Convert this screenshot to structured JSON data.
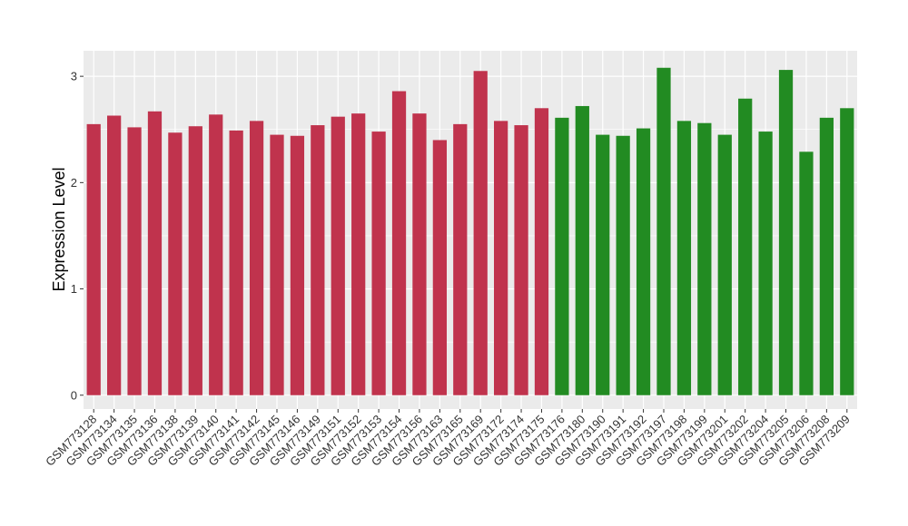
{
  "chart_data": {
    "type": "bar",
    "title": "",
    "xlabel": "",
    "ylabel": "Expression Level",
    "ylim": [
      -0.13,
      3.24
    ],
    "yticks": [
      0,
      1,
      2,
      3
    ],
    "grid": true,
    "legend": "none",
    "colors": {
      "group1": "#C0334D",
      "group2": "#228B22",
      "panel": "#EBEBEB",
      "grid": "#FFFFFF"
    },
    "categories": [
      "GSM773128",
      "GSM773134",
      "GSM773135",
      "GSM773136",
      "GSM773138",
      "GSM773139",
      "GSM773140",
      "GSM773141",
      "GSM773142",
      "GSM773145",
      "GSM773146",
      "GSM773149",
      "GSM773151",
      "GSM773152",
      "GSM773153",
      "GSM773154",
      "GSM773156",
      "GSM773163",
      "GSM773165",
      "GSM773169",
      "GSM773172",
      "GSM773174",
      "GSM773175",
      "GSM773176",
      "GSM773180",
      "GSM773190",
      "GSM773191",
      "GSM773192",
      "GSM773197",
      "GSM773198",
      "GSM773199",
      "GSM773201",
      "GSM773202",
      "GSM773204",
      "GSM773205",
      "GSM773206",
      "GSM773208",
      "GSM773209"
    ],
    "values": [
      2.55,
      2.63,
      2.52,
      2.67,
      2.47,
      2.53,
      2.64,
      2.49,
      2.58,
      2.45,
      2.44,
      2.54,
      2.62,
      2.65,
      2.48,
      2.86,
      2.65,
      2.4,
      2.55,
      3.05,
      2.58,
      2.54,
      2.7,
      2.61,
      2.72,
      2.45,
      2.44,
      2.51,
      3.08,
      2.58,
      2.56,
      2.45,
      2.79,
      2.48,
      3.06,
      2.29,
      2.61,
      2.7
    ],
    "groups": [
      1,
      1,
      1,
      1,
      1,
      1,
      1,
      1,
      1,
      1,
      1,
      1,
      1,
      1,
      1,
      1,
      1,
      1,
      1,
      1,
      1,
      1,
      1,
      2,
      2,
      2,
      2,
      2,
      2,
      2,
      2,
      2,
      2,
      2,
      2,
      2,
      2,
      2
    ]
  }
}
